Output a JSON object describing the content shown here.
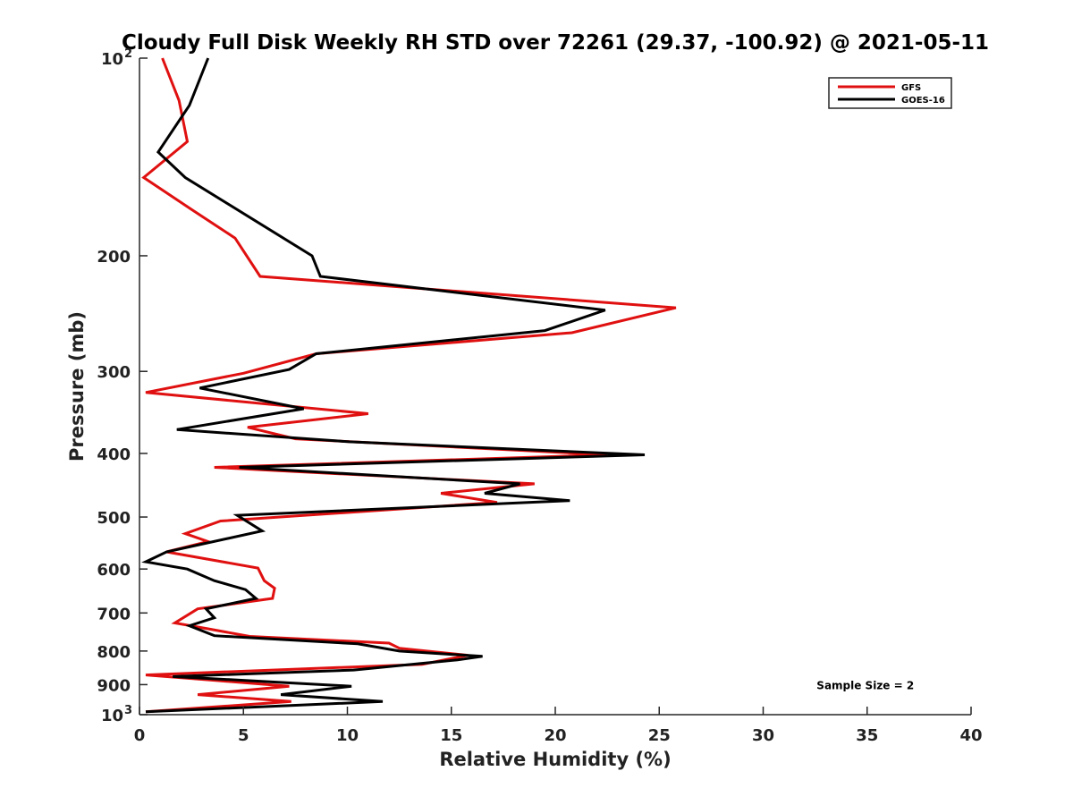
{
  "chart_data": {
    "type": "line",
    "title": "Cloudy Full Disk Weekly RH STD over 72261 (29.37, -100.92) @ 2021-05-11",
    "xlabel": "Relative Humidity (%)",
    "ylabel": "Pressure (mb)",
    "xlim": [
      0,
      40
    ],
    "ylim": [
      100,
      1000
    ],
    "y_scale": "log",
    "y_reversed": true,
    "x_ticks": [
      {
        "value": 0,
        "label": "0"
      },
      {
        "value": 5,
        "label": "5"
      },
      {
        "value": 10,
        "label": "10"
      },
      {
        "value": 15,
        "label": "15"
      },
      {
        "value": 20,
        "label": "20"
      },
      {
        "value": 25,
        "label": "25"
      },
      {
        "value": 30,
        "label": "30"
      },
      {
        "value": 35,
        "label": "35"
      },
      {
        "value": 40,
        "label": "40"
      }
    ],
    "y_ticks": [
      {
        "value": 100,
        "label": "10",
        "sup": "2"
      },
      {
        "value": 200,
        "label": "200",
        "sup": ""
      },
      {
        "value": 300,
        "label": "300",
        "sup": ""
      },
      {
        "value": 400,
        "label": "400",
        "sup": ""
      },
      {
        "value": 500,
        "label": "500",
        "sup": ""
      },
      {
        "value": 600,
        "label": "600",
        "sup": ""
      },
      {
        "value": 700,
        "label": "700",
        "sup": ""
      },
      {
        "value": 800,
        "label": "800",
        "sup": ""
      },
      {
        "value": 900,
        "label": "900",
        "sup": ""
      },
      {
        "value": 1000,
        "label": "10",
        "sup": "3"
      }
    ],
    "legend_position": "top-right",
    "grid": false,
    "series": [
      {
        "name": "GFS",
        "color": "#e01010",
        "points": [
          [
            1.1,
            100
          ],
          [
            1.9,
            116
          ],
          [
            2.3,
            134
          ],
          [
            0.2,
            152
          ],
          [
            2.5,
            170
          ],
          [
            4.6,
            188
          ],
          [
            5.8,
            215
          ],
          [
            25.8,
            240
          ],
          [
            20.8,
            262
          ],
          [
            8.5,
            282
          ],
          [
            5,
            302
          ],
          [
            0.3,
            323
          ],
          [
            11.0,
            348
          ],
          [
            5.2,
            365
          ],
          [
            7.5,
            380
          ],
          [
            22.5,
            402
          ],
          [
            3.6,
            420
          ],
          [
            19,
            445
          ],
          [
            14.5,
            460
          ],
          [
            17.2,
            475
          ],
          [
            3.9,
            507
          ],
          [
            2.2,
            530
          ],
          [
            3.3,
            545
          ],
          [
            1.3,
            565
          ],
          [
            5.7,
            598
          ],
          [
            6.0,
            625
          ],
          [
            6.5,
            642
          ],
          [
            6.4,
            665
          ],
          [
            2.8,
            690
          ],
          [
            1.7,
            725
          ],
          [
            3.3,
            740
          ],
          [
            5.3,
            760
          ],
          [
            12.0,
            778
          ],
          [
            12.5,
            792
          ],
          [
            15.8,
            812
          ],
          [
            13.6,
            838
          ],
          [
            0.3,
            870
          ],
          [
            7.2,
            905
          ],
          [
            2.8,
            932
          ],
          [
            7.3,
            955
          ],
          [
            0.3,
            990
          ]
        ]
      },
      {
        "name": "GOES-16",
        "color": "#000000",
        "points": [
          [
            3.3,
            100
          ],
          [
            2.4,
            118
          ],
          [
            0.9,
            139
          ],
          [
            2.2,
            152
          ],
          [
            8.3,
            200
          ],
          [
            8.7,
            215
          ],
          [
            22.4,
            242
          ],
          [
            19.5,
            260
          ],
          [
            8.5,
            282
          ],
          [
            7.2,
            298
          ],
          [
            2.9,
            318
          ],
          [
            7.9,
            342
          ],
          [
            1.8,
            368
          ],
          [
            10.1,
            384
          ],
          [
            24.3,
            402
          ],
          [
            4.8,
            420
          ],
          [
            18.3,
            445
          ],
          [
            16.6,
            460
          ],
          [
            20.7,
            472
          ],
          [
            4.7,
            497
          ],
          [
            5.9,
            525
          ],
          [
            1.3,
            565
          ],
          [
            0.3,
            585
          ],
          [
            2.3,
            600
          ],
          [
            3.6,
            625
          ],
          [
            5.1,
            645
          ],
          [
            5.6,
            665
          ],
          [
            3.2,
            690
          ],
          [
            3.6,
            712
          ],
          [
            2.4,
            732
          ],
          [
            3.6,
            758
          ],
          [
            10.5,
            780
          ],
          [
            12.5,
            800
          ],
          [
            16.5,
            815
          ],
          [
            15.3,
            825
          ],
          [
            10.3,
            855
          ],
          [
            1.6,
            875
          ],
          [
            10.2,
            905
          ],
          [
            6.8,
            932
          ],
          [
            11.7,
            955
          ],
          [
            0.3,
            990
          ]
        ]
      }
    ],
    "annotations": [
      {
        "text": "Sample Size = 2",
        "x": 35,
        "y": 900
      }
    ]
  }
}
